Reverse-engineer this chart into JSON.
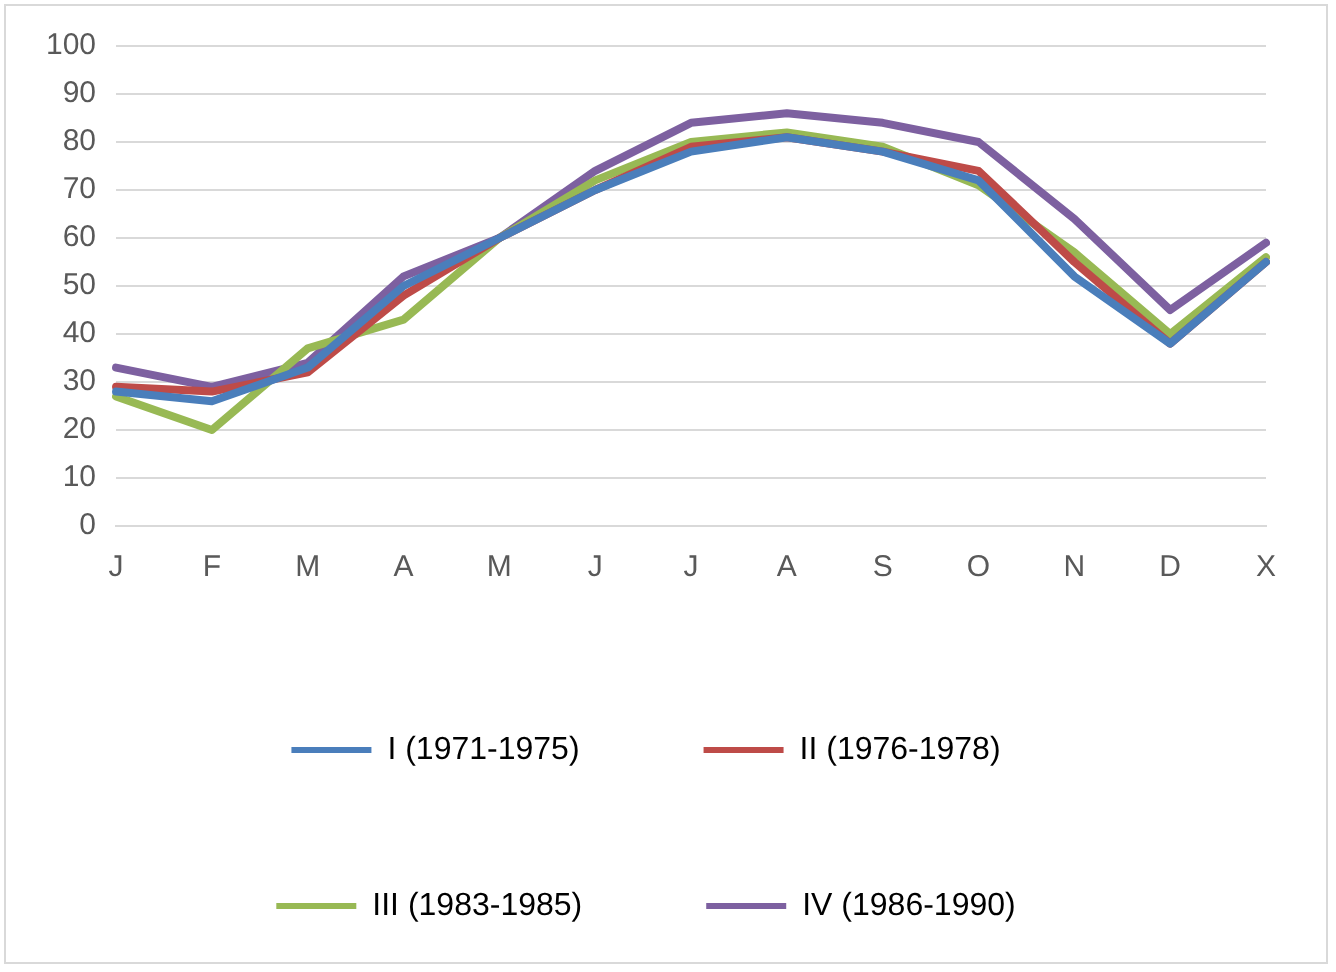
{
  "chart_data": {
    "type": "line",
    "categories": [
      "J",
      "F",
      "M",
      "A",
      "M",
      "J",
      "J",
      "A",
      "S",
      "O",
      "N",
      "D",
      "X"
    ],
    "series": [
      {
        "name": "I (1971-1975)",
        "color": "#4a7ebb",
        "values": [
          28,
          26,
          33,
          50,
          60,
          70,
          78,
          81,
          78,
          72,
          52,
          38,
          55
        ]
      },
      {
        "name": "II (1976-1978)",
        "color": "#be4b48",
        "values": [
          29,
          28,
          32,
          48,
          60,
          70,
          79,
          81,
          78,
          74,
          55,
          38,
          55
        ]
      },
      {
        "name": "III (1983-1985)",
        "color": "#98b954",
        "values": [
          27,
          20,
          37,
          43,
          60,
          72,
          80,
          82,
          79,
          71,
          57,
          40,
          56
        ]
      },
      {
        "name": "IV (1986-1990)",
        "color": "#7d60a0",
        "values": [
          33,
          29,
          34,
          52,
          60,
          74,
          84,
          86,
          84,
          80,
          64,
          45,
          59
        ]
      }
    ],
    "ylim": [
      0,
      100
    ],
    "yticks": [
      0,
      10,
      20,
      30,
      40,
      50,
      60,
      70,
      80,
      90,
      100
    ],
    "grid": "y",
    "legend": "bottom",
    "marker": "none",
    "line_style": "solid"
  }
}
